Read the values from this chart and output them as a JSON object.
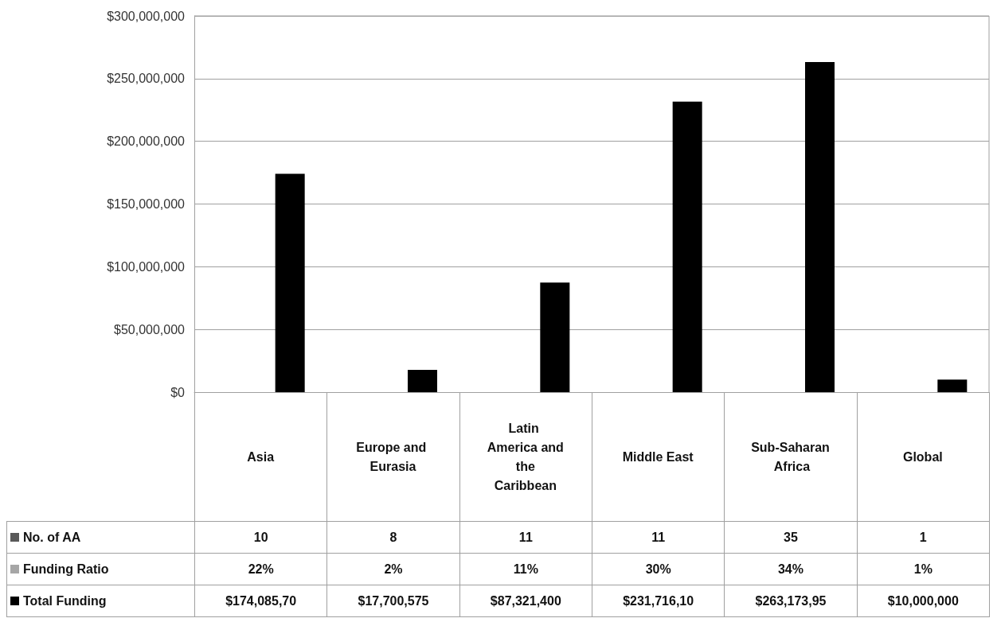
{
  "chart_data": {
    "type": "bar",
    "categories": [
      "Asia",
      "Europe and Eurasia",
      "Latin America and the Caribbean",
      "Middle East",
      "Sub-Saharan Africa",
      "Global"
    ],
    "series": [
      {
        "name": "No. of AA",
        "color": "#595959",
        "values": [
          10,
          8,
          11,
          11,
          35,
          1
        ],
        "value_labels": [
          "10",
          "8",
          "11",
          "11",
          "35",
          "1"
        ]
      },
      {
        "name": "Funding Ratio",
        "color": "#a6a6a6",
        "values": [
          22,
          2,
          11,
          30,
          34,
          1
        ],
        "value_labels": [
          "22%",
          "2%",
          "11%",
          "30%",
          "34%",
          "1%"
        ]
      },
      {
        "name": "Total Funding",
        "color": "#000000",
        "values": [
          174085700,
          17700575,
          87321400,
          231716100,
          263173950,
          10000000
        ],
        "value_labels": [
          "$174,085,70",
          "$17,700,575",
          "$87,321,400",
          "$231,716,10",
          "$263,173,95",
          "$10,000,000"
        ]
      }
    ],
    "ylim": [
      0,
      300000000
    ],
    "yticks": [
      {
        "value": 0,
        "label": "$0"
      },
      {
        "value": 50000000,
        "label": "$50,000,000"
      },
      {
        "value": 100000000,
        "label": "$100,000,000"
      },
      {
        "value": 150000000,
        "label": "$150,000,000"
      },
      {
        "value": 200000000,
        "label": "$200,000,000"
      },
      {
        "value": 250000000,
        "label": "$250,000,000"
      },
      {
        "value": 300000000,
        "label": "$300,000,000"
      }
    ],
    "grid": "y",
    "legend": "bottom left"
  }
}
